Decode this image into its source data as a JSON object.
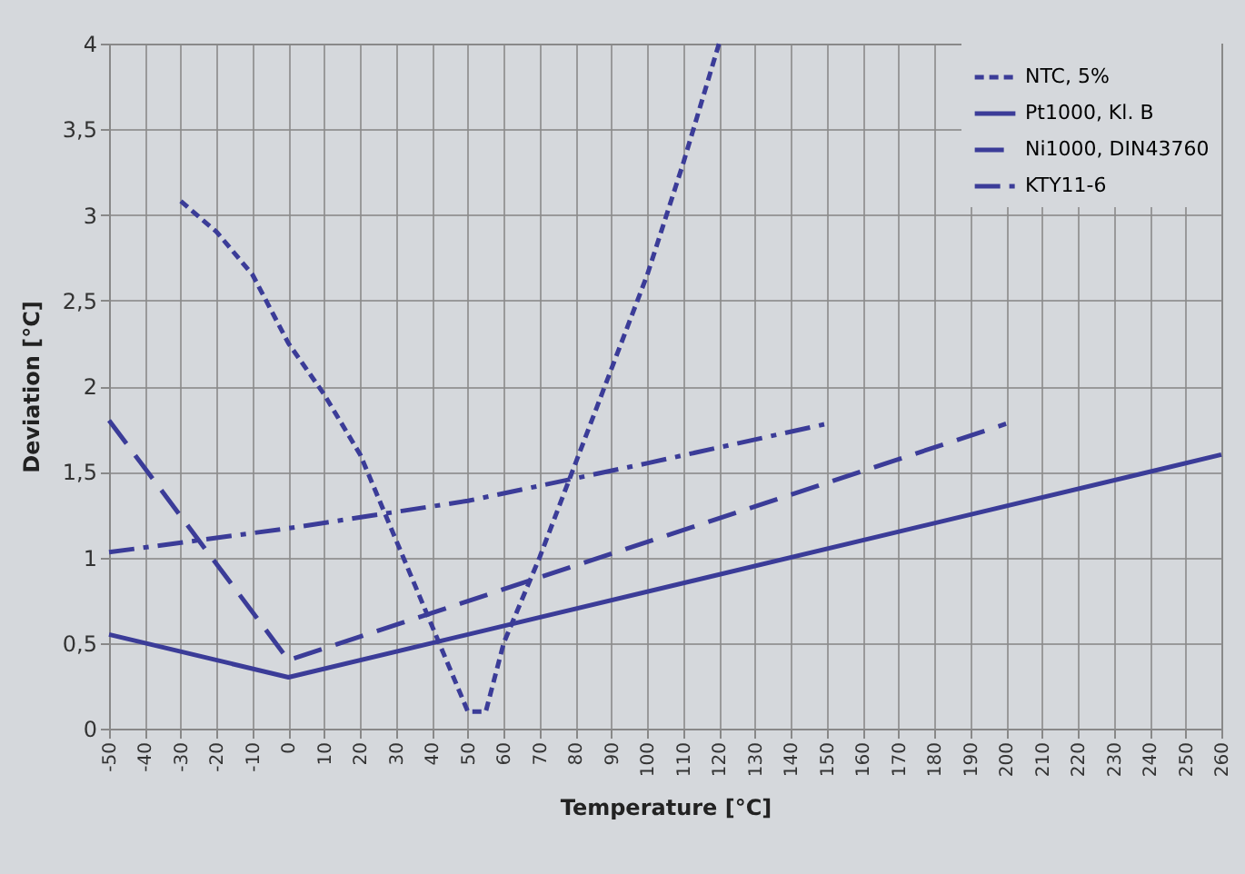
{
  "chart_data": {
    "type": "line",
    "xlabel": "Temperature [°C]",
    "ylabel": "Deviation [°C]",
    "xlim": [
      -50,
      260
    ],
    "xticks": [
      -50,
      -40,
      -30,
      -20,
      -10,
      0,
      10,
      20,
      30,
      40,
      50,
      60,
      70,
      80,
      90,
      100,
      110,
      120,
      130,
      140,
      150,
      160,
      170,
      180,
      190,
      200,
      210,
      220,
      230,
      240,
      250,
      260
    ],
    "ylim": [
      0,
      4
    ],
    "yticks": [
      0,
      {
        "value": 0.5,
        "label": "0,5"
      },
      1,
      {
        "value": 1.5,
        "label": "1,5"
      },
      2,
      {
        "value": 2.5,
        "label": "2,5"
      },
      3,
      {
        "value": 3.5,
        "label": "3,5"
      },
      4
    ],
    "grid": true,
    "legend": "top right",
    "marker": "none",
    "series": [
      {
        "name": "NTC, 5%",
        "color": "#3b3c98",
        "line_style": "dotted",
        "x": [
          -30,
          -20,
          -10,
          0,
          10,
          20,
          30,
          40,
          50,
          55,
          60,
          70,
          80,
          90,
          100,
          110,
          120
        ],
        "values": [
          3.08,
          2.9,
          2.65,
          2.25,
          1.95,
          1.6,
          1.1,
          0.6,
          0.1,
          0.1,
          0.5,
          1.0,
          1.55,
          2.1,
          2.65,
          3.3,
          4.0
        ]
      },
      {
        "name": "Pt1000, Kl. B",
        "color": "#3b3c98",
        "line_style": "solid",
        "x": [
          -50,
          0,
          260
        ],
        "values": [
          0.55,
          0.3,
          1.6
        ]
      },
      {
        "name": "Ni1000, DIN43760",
        "color": "#3b3c98",
        "line_style": "dashed",
        "x": [
          -50,
          0,
          200
        ],
        "values": [
          1.8,
          0.4,
          1.78
        ]
      },
      {
        "name": "KTY11-6",
        "color": "#3b3c98",
        "line_style": "dashed",
        "x": [
          -50,
          0,
          50,
          100,
          150
        ],
        "values": [
          1.03,
          1.17,
          1.33,
          1.55,
          1.78
        ]
      }
    ]
  }
}
